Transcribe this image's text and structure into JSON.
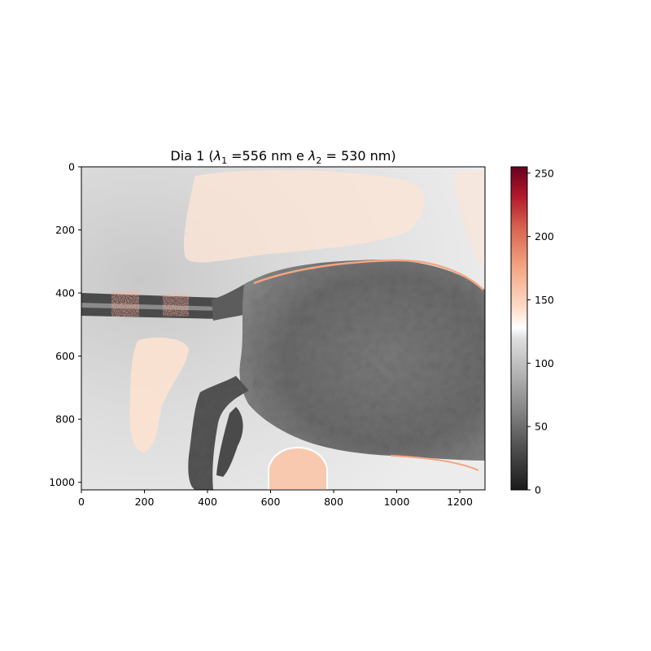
{
  "chart_data": {
    "type": "heatmap",
    "title_parts": [
      "Dia 1 (",
      "λ",
      "1",
      " =556 nm e ",
      "λ",
      "2",
      " = 530 nm)"
    ],
    "xlabel": "",
    "ylabel": "",
    "image_size": {
      "width": 1280,
      "height": 1024
    },
    "xlim": [
      0,
      1280
    ],
    "ylim": [
      1024,
      0
    ],
    "x_ticks": [
      0,
      200,
      400,
      600,
      800,
      1000,
      1200
    ],
    "y_ticks": [
      0,
      200,
      400,
      600,
      800,
      1000
    ],
    "colorbar": {
      "colormap": "RdGy_r",
      "range": [
        0,
        255
      ],
      "ticks": [
        0,
        50,
        100,
        150,
        200,
        250
      ],
      "stops": [
        {
          "value": 0,
          "color": "#1a1a1a"
        },
        {
          "value": 32,
          "color": "#4d4d4d"
        },
        {
          "value": 64,
          "color": "#878787"
        },
        {
          "value": 96,
          "color": "#bababa"
        },
        {
          "value": 120,
          "color": "#e0e0e0"
        },
        {
          "value": 128,
          "color": "#ffffff"
        },
        {
          "value": 144,
          "color": "#fddbc7"
        },
        {
          "value": 176,
          "color": "#f4a582"
        },
        {
          "value": 208,
          "color": "#d6604d"
        },
        {
          "value": 232,
          "color": "#b2182b"
        },
        {
          "value": 255,
          "color": "#67001f"
        }
      ]
    },
    "regions": {
      "background_value": 112,
      "body_value": 72,
      "tail_value": 58,
      "warm_region_value": 140,
      "round_object_value": 150,
      "edge_value": 190
    }
  }
}
